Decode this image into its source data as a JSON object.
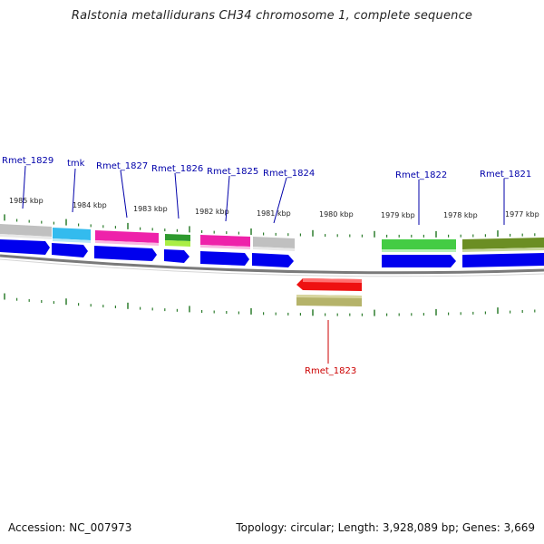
{
  "title": "Ralstonia metallidurans CH34 chromosome 1, complete sequence",
  "footer": {
    "accession": "Accession: NC_007973",
    "summary": "Topology: circular; Length: 3,928,089 bp; Genes: 3,669"
  },
  "colors": {
    "label_forward": "#0000aa",
    "label_reverse": "#cc0000",
    "tick": "#2e7d2e",
    "backbone": "#7a7a7a",
    "cds_blue": "#0000ee"
  },
  "ruler_labels": [
    "1985 kbp",
    "1984 kbp",
    "1983 kbp",
    "1982 kbp",
    "1981 kbp",
    "1980 kbp",
    "1979 kbp",
    "1978 kbp",
    "1977 kbp"
  ],
  "genes_forward": [
    {
      "name": "Rmet_1829",
      "color": "#c0c0c0"
    },
    {
      "name": "tmk",
      "color": "#33bbee"
    },
    {
      "name": "Rmet_1827",
      "color": "#ee22aa"
    },
    {
      "name": "Rmet_1826",
      "color": "#2e9a2e"
    },
    {
      "name": "Rmet_1825",
      "color": "#ee22aa"
    },
    {
      "name": "Rmet_1824",
      "color": "#c0c0c0"
    },
    {
      "name": "Rmet_1822",
      "color": "#44cc44"
    },
    {
      "name": "Rmet_1821",
      "color": "#6b8e23"
    }
  ],
  "genes_reverse": [
    {
      "name": "Rmet_1823",
      "color": "#ee1111",
      "sub_color": "#b5b36a"
    }
  ]
}
